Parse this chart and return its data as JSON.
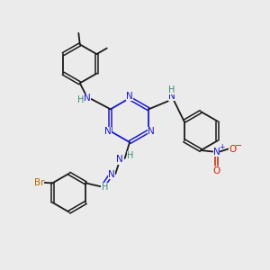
{
  "bg_color": "#ebebeb",
  "bond_color": "#1a1a1a",
  "N_color": "#1a1acc",
  "H_color": "#3a8a7a",
  "Br_color": "#b86800",
  "O_color": "#cc2200",
  "figsize": [
    3.0,
    3.0
  ],
  "dpi": 100,
  "xlim": [
    0,
    10
  ],
  "ylim": [
    0,
    10
  ]
}
